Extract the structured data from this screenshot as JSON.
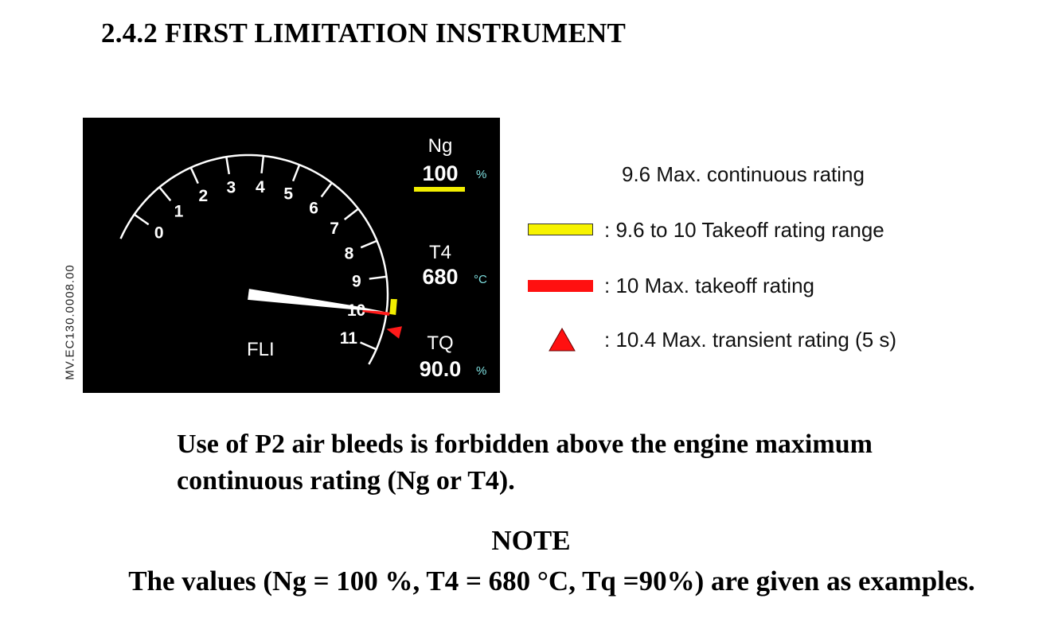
{
  "section": {
    "number": "2.4.2",
    "title": "FIRST LIMITATION INSTRUMENT"
  },
  "side_reference": "MV.EC130.0008.00",
  "instrument": {
    "label": "FLI",
    "pointer_value": 9.95,
    "scale": [
      "0",
      "1",
      "2",
      "3",
      "4",
      "5",
      "6",
      "7",
      "8",
      "9",
      "10",
      "11"
    ],
    "takeoff_range": [
      9.6,
      10
    ],
    "max_takeoff": 10,
    "max_transient": 10.4,
    "ng": {
      "label": "Ng",
      "value": "100",
      "unit": "%"
    },
    "t4": {
      "label": "T4",
      "value": "680",
      "unit": "°C"
    },
    "tq": {
      "label": "TQ",
      "value": "90.0",
      "unit": "%"
    },
    "colors": {
      "background": "#000000",
      "dial": "#ffffff",
      "takeoff_range": "#f2ee00",
      "max_takeoff": "#ff1a1a",
      "transient": "#ff1a1a",
      "unit_text": "#7fe0e0"
    }
  },
  "legend": {
    "max_continuous": "9.6 Max. continuous rating",
    "takeoff_range": ": 9.6 to 10 Takeoff rating range",
    "max_takeoff": ": 10 Max. takeoff rating",
    "max_transient": ": 10.4 Max. transient rating (5 s)"
  },
  "body": {
    "line1": "Use of P2 air bleeds is forbidden above the engine maximum",
    "line2": "continuous rating (Ng or T4)."
  },
  "note": {
    "title": "NOTE",
    "text": "The values (Ng = 100 %, T4 = 680 °C, Tq =90%) are given as examples."
  }
}
